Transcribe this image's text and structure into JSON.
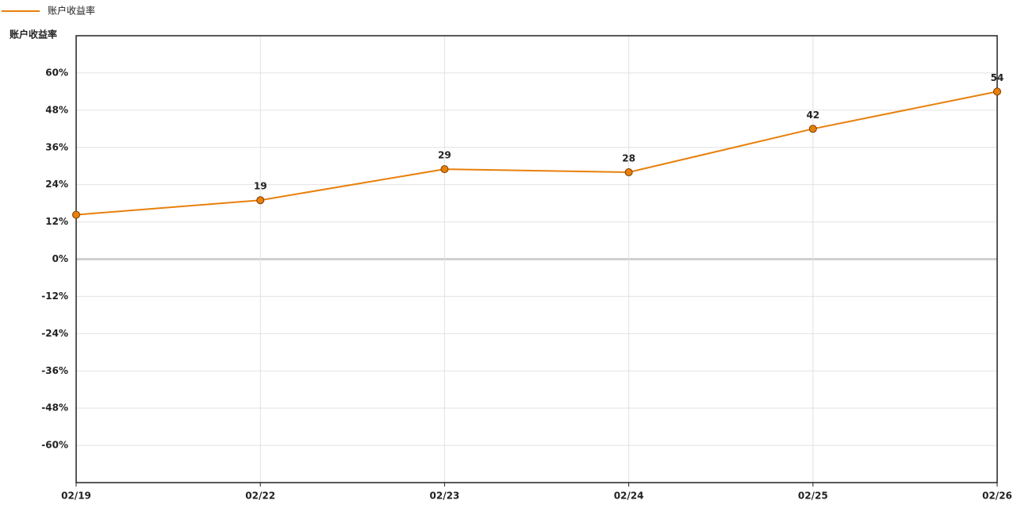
{
  "chart_data": {
    "type": "line",
    "y_label": "账户收益率",
    "categories": [
      "02/19",
      "02/22",
      "02/23",
      "02/24",
      "02/25",
      "02/26"
    ],
    "series": [
      {
        "name": "账户收益率",
        "color": "#e8800c",
        "values": [
          14.3,
          19,
          29,
          28,
          42,
          54
        ],
        "value_labels": [
          null,
          "19",
          "29",
          "28",
          "42",
          "54"
        ]
      }
    ],
    "ylim": [
      -72,
      72
    ],
    "yticks": [
      {
        "value": -60,
        "label": "-60%"
      },
      {
        "value": -48,
        "label": "-48%"
      },
      {
        "value": -36,
        "label": "-36%"
      },
      {
        "value": -24,
        "label": "-24%"
      },
      {
        "value": -12,
        "label": "-12%"
      },
      {
        "value": 0,
        "label": "0%"
      },
      {
        "value": 12,
        "label": "12%"
      },
      {
        "value": 24,
        "label": "24%"
      },
      {
        "value": 36,
        "label": "36%"
      },
      {
        "value": 48,
        "label": "48%"
      },
      {
        "value": 60,
        "label": "60%"
      }
    ],
    "grid": true
  }
}
